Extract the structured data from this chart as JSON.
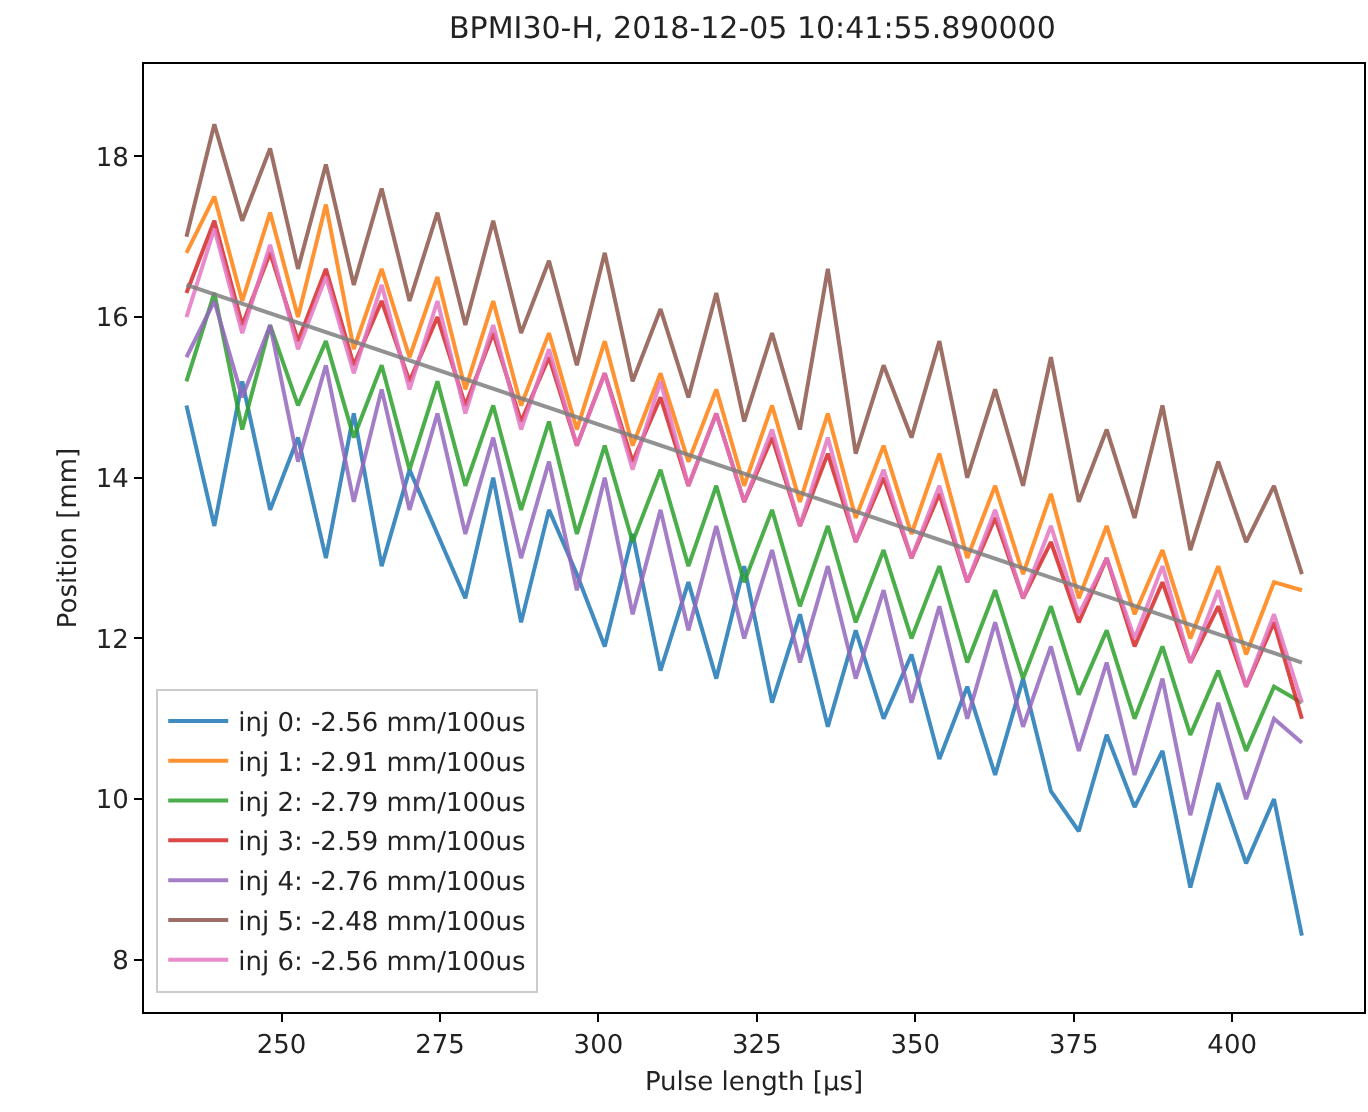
{
  "chart_data": {
    "type": "line",
    "title": "BPMI30-H, 2018-12-05 10:41:55.890000",
    "xlabel": "Pulse length [μs]",
    "ylabel": "Position [mm]",
    "x": [
      235.0,
      239.4,
      243.8,
      248.2,
      252.6,
      257.0,
      261.4,
      265.8,
      270.2,
      274.6,
      279.0,
      283.4,
      287.8,
      292.2,
      296.6,
      301.0,
      305.4,
      309.8,
      314.2,
      318.6,
      323.0,
      327.4,
      331.8,
      336.2,
      340.6,
      345.0,
      349.4,
      353.8,
      358.2,
      362.6,
      367.0,
      371.4,
      375.8,
      380.2,
      384.6,
      389.0,
      393.4,
      397.8,
      402.2,
      406.6,
      411.0
    ],
    "xlim": [
      228.3,
      420.8
    ],
    "ylim": [
      7.35,
      19.15
    ],
    "xticks": [
      250,
      275,
      300,
      325,
      350,
      375,
      400
    ],
    "yticks": [
      8,
      10,
      12,
      14,
      16,
      18
    ],
    "legend": "bottom left",
    "marker": "none",
    "line_style": "solid",
    "series": [
      {
        "name": "inj 0: -2.56 mm/100us",
        "color": "#1f77b4",
        "values": [
          14.9,
          13.4,
          15.2,
          13.6,
          14.5,
          13.0,
          14.8,
          12.9,
          14.1,
          13.3,
          12.5,
          14.0,
          12.2,
          13.6,
          12.8,
          11.9,
          13.3,
          11.6,
          12.7,
          11.5,
          12.9,
          11.2,
          12.3,
          10.9,
          12.1,
          11.0,
          11.8,
          10.5,
          11.4,
          10.3,
          11.5,
          10.1,
          9.6,
          10.8,
          9.9,
          10.6,
          8.9,
          10.2,
          9.2,
          10.0,
          8.3
        ]
      },
      {
        "name": "inj 1: -2.91 mm/100us",
        "color": "#ff7f0e",
        "values": [
          16.8,
          17.5,
          16.2,
          17.3,
          16.0,
          17.4,
          15.6,
          16.6,
          15.5,
          16.5,
          15.1,
          16.2,
          14.9,
          15.8,
          14.6,
          15.7,
          14.4,
          15.3,
          14.2,
          15.1,
          13.9,
          14.9,
          13.7,
          14.8,
          13.5,
          14.4,
          13.3,
          14.3,
          13.0,
          13.9,
          12.8,
          13.8,
          12.5,
          13.4,
          12.3,
          13.1,
          12.0,
          12.9,
          11.8,
          12.7,
          12.6
        ]
      },
      {
        "name": "inj 2: -2.79 mm/100us",
        "color": "#2ca02c",
        "values": [
          15.2,
          16.3,
          14.6,
          15.9,
          14.9,
          15.7,
          14.5,
          15.4,
          14.1,
          15.2,
          13.9,
          14.9,
          13.6,
          14.7,
          13.3,
          14.4,
          13.2,
          14.1,
          12.9,
          13.9,
          12.7,
          13.6,
          12.4,
          13.4,
          12.2,
          13.1,
          12.0,
          12.9,
          11.7,
          12.6,
          11.5,
          12.4,
          11.3,
          12.1,
          11.0,
          11.9,
          10.8,
          11.6,
          10.6,
          11.4,
          11.2
        ]
      },
      {
        "name": "inj 3: -2.59 mm/100us",
        "color": "#d62728",
        "values": [
          16.3,
          17.2,
          15.9,
          16.8,
          15.7,
          16.6,
          15.4,
          16.2,
          15.2,
          16.0,
          14.9,
          15.8,
          14.7,
          15.5,
          14.4,
          15.3,
          14.2,
          15.0,
          13.9,
          14.8,
          13.7,
          14.5,
          13.4,
          14.3,
          13.2,
          14.0,
          13.0,
          13.8,
          12.7,
          13.5,
          12.5,
          13.2,
          12.2,
          13.0,
          11.9,
          12.7,
          11.7,
          12.4,
          11.4,
          12.2,
          11.0
        ]
      },
      {
        "name": "inj 4: -2.76 mm/100us",
        "color": "#9467bd",
        "values": [
          15.5,
          16.2,
          15.0,
          15.9,
          14.2,
          15.4,
          13.7,
          15.1,
          13.6,
          14.8,
          13.3,
          14.5,
          13.0,
          14.2,
          12.6,
          14.0,
          12.3,
          13.6,
          12.1,
          13.4,
          12.0,
          13.1,
          11.7,
          12.9,
          11.5,
          12.6,
          11.2,
          12.4,
          11.0,
          12.2,
          10.9,
          11.9,
          10.6,
          11.7,
          10.3,
          11.5,
          9.8,
          11.2,
          10.0,
          11.0,
          10.7
        ]
      },
      {
        "name": "inj 5: -2.48 mm/100us",
        "color": "#8c564b",
        "values": [
          17.0,
          18.4,
          17.2,
          18.1,
          16.6,
          17.9,
          16.4,
          17.6,
          16.2,
          17.3,
          15.9,
          17.2,
          15.8,
          16.7,
          15.4,
          16.8,
          15.2,
          16.1,
          15.0,
          16.3,
          14.7,
          15.8,
          14.6,
          16.6,
          14.3,
          15.4,
          14.5,
          15.7,
          14.0,
          15.1,
          13.9,
          15.5,
          13.7,
          14.6,
          13.5,
          14.9,
          13.1,
          14.2,
          13.2,
          13.9,
          12.8
        ]
      },
      {
        "name": "inj 6: -2.56 mm/100us",
        "color": "#e377c2",
        "values": [
          16.0,
          17.1,
          15.8,
          16.9,
          15.6,
          16.5,
          15.3,
          16.4,
          15.1,
          16.2,
          14.8,
          15.9,
          14.6,
          15.6,
          14.4,
          15.3,
          14.1,
          15.2,
          13.9,
          14.8,
          13.7,
          14.6,
          13.4,
          14.5,
          13.2,
          14.1,
          13.0,
          13.9,
          12.7,
          13.6,
          12.5,
          13.4,
          12.3,
          13.0,
          12.0,
          12.9,
          11.7,
          12.6,
          11.4,
          12.3,
          11.2
        ]
      },
      {
        "type": "line",
        "color": "#7f7f7f",
        "x": [
          235.0,
          411.0
        ],
        "values": [
          16.4,
          11.7
        ]
      }
    ]
  }
}
